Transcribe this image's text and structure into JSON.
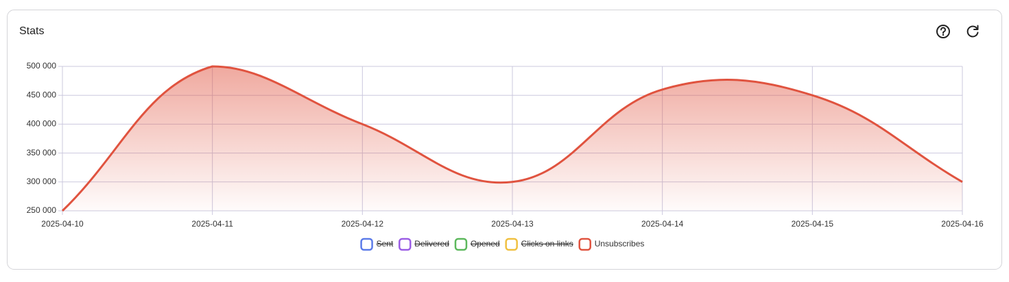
{
  "panel": {
    "title": "Stats"
  },
  "chart_data": {
    "type": "area",
    "categories": [
      "2025-04-10",
      "2025-04-11",
      "2025-04-12",
      "2025-04-13",
      "2025-04-14",
      "2025-04-15",
      "2025-04-16"
    ],
    "series": [
      {
        "name": "Sent",
        "color": "#5b7be9",
        "hidden": true
      },
      {
        "name": "Delivered",
        "color": "#9b5de5",
        "hidden": true
      },
      {
        "name": "Opened",
        "color": "#5cb85c",
        "hidden": true
      },
      {
        "name": "Clicks on links",
        "color": "#f0c040",
        "hidden": true
      },
      {
        "name": "Unsubscribes",
        "color": "#e0533f",
        "values": [
          250000,
          500000,
          400000,
          300000,
          460000,
          450000,
          300000
        ]
      }
    ],
    "ylim": [
      250000,
      500000
    ],
    "yticks": [
      {
        "value": 250000,
        "label": "250 000"
      },
      {
        "value": 300000,
        "label": "300 000"
      },
      {
        "value": 350000,
        "label": "350 000"
      },
      {
        "value": 400000,
        "label": "400 000"
      },
      {
        "value": 450000,
        "label": "450 000"
      },
      {
        "value": 500000,
        "label": "500 000"
      }
    ],
    "grid": true,
    "legend": "bottom"
  }
}
